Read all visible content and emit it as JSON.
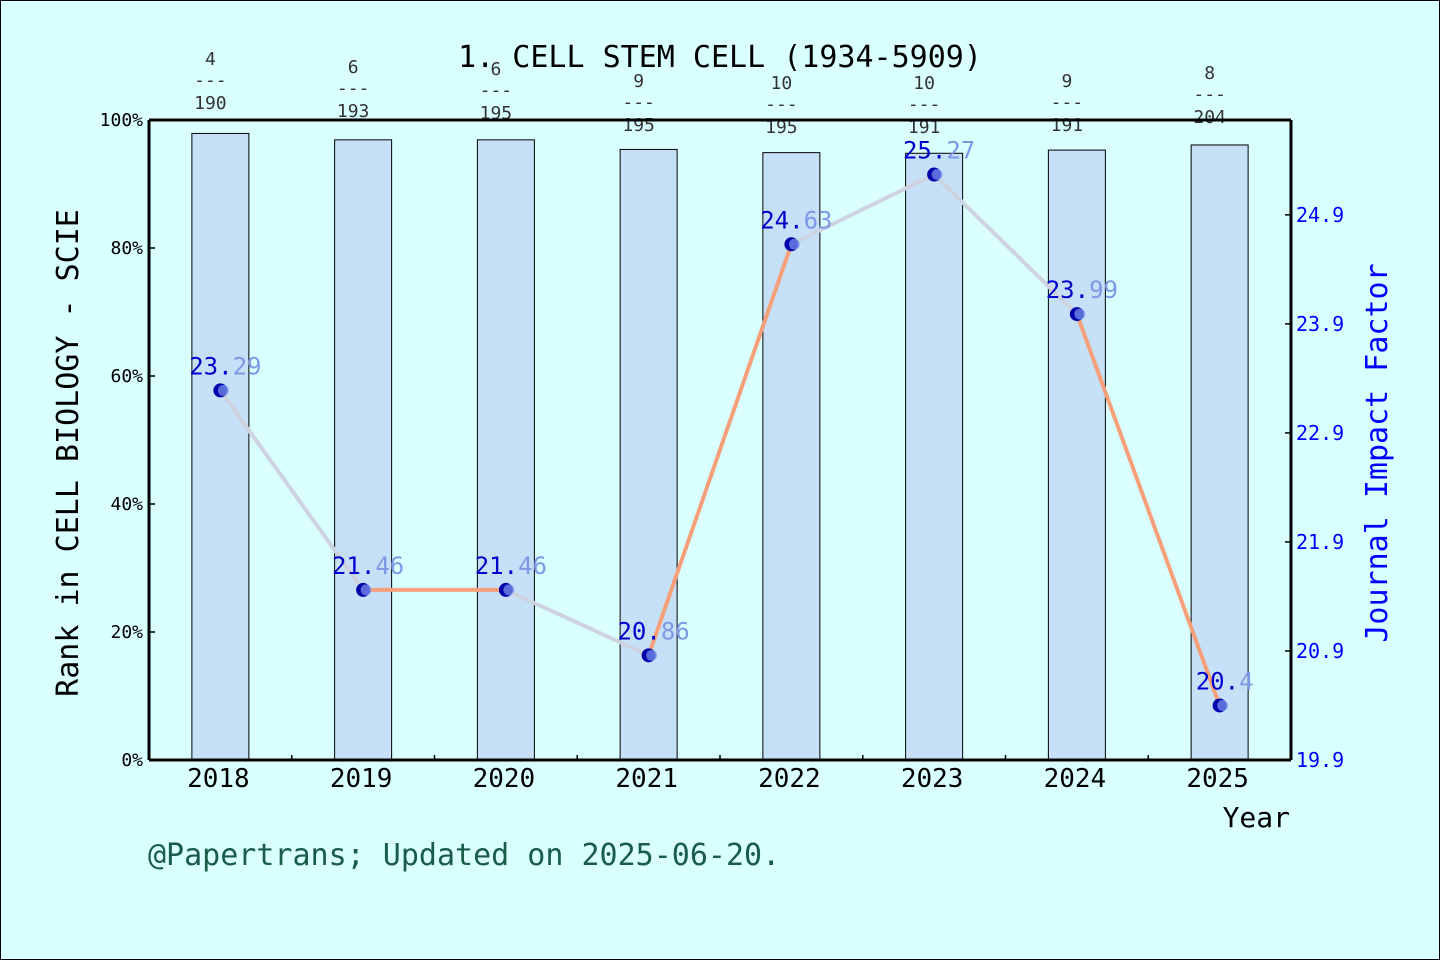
{
  "chart_data": {
    "type": "bar+line",
    "title": "1. CELL STEM CELL (1934-5909)",
    "xlabel": "Year",
    "ylabel_left": "Rank in CELL BIOLOGY - SCIE",
    "ylabel_right": "Journal Impact Factor",
    "footer": "@Papertrans; Updated on 2025-06-20.",
    "categories": [
      "2018",
      "2019",
      "2020",
      "2021",
      "2022",
      "2023",
      "2024",
      "2025"
    ],
    "rank_fractions": [
      {
        "rank": "4",
        "total": "190"
      },
      {
        "rank": "6",
        "total": "193"
      },
      {
        "rank": "6",
        "total": "195"
      },
      {
        "rank": "9",
        "total": "195"
      },
      {
        "rank": "10",
        "total": "195"
      },
      {
        "rank": "10",
        "total": "191"
      },
      {
        "rank": "9",
        "total": "191"
      },
      {
        "rank": "8",
        "total": "204"
      }
    ],
    "series": [
      {
        "name": "Rank percentile",
        "axis": "left",
        "kind": "bar",
        "values": [
          97.9,
          96.9,
          96.9,
          95.4,
          94.9,
          94.8,
          95.3,
          96.1
        ]
      },
      {
        "name": "Journal Impact Factor",
        "axis": "right",
        "kind": "line",
        "values": [
          23.29,
          21.46,
          21.46,
          20.86,
          24.63,
          25.27,
          23.99,
          20.4
        ],
        "labels": [
          "23.29",
          "21.46",
          "21.46",
          "20.86",
          "24.63",
          "25.27",
          "23.99",
          "20.4"
        ]
      }
    ],
    "y_left": {
      "ylim": [
        0,
        100
      ],
      "ticks": [
        "0%",
        "20%",
        "40%",
        "60%",
        "80%",
        "100%"
      ]
    },
    "y_right": {
      "ylim": [
        19.9,
        25.77
      ],
      "ticks": [
        "19.9",
        "20.9",
        "21.9",
        "22.9",
        "23.9",
        "24.9"
      ]
    },
    "colors": {
      "background": "#d9ffff",
      "bar_fill": "#c6e0f7",
      "line": "#f5a07a",
      "line_faded": "#cdd3df",
      "marker": "#0000aa",
      "right_axis": "#0000ff",
      "label_dark": "#0000cc",
      "label_light": "#7f98e6",
      "footer": "#1a5c4a"
    }
  }
}
